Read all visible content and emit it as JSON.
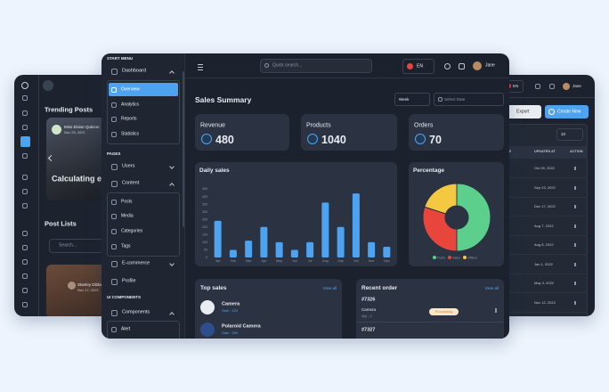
{
  "left_panel": {
    "trending_title": "Trending Posts",
    "author": "Miss Eloise Quitzon",
    "author_date": "Nov 25, 2021",
    "post_title": "Calculating exa",
    "post_lists_title": "Post Lists",
    "search_placeholder": "Search...",
    "list_author": "Stanley Dibbert",
    "list_date": "Nov 17, 2021"
  },
  "sidebar": {
    "start_menu": "START MENU",
    "dashboard": "Dashboard",
    "dashboard_items": [
      "Overview",
      "Analytics",
      "Reports",
      "Statistics"
    ],
    "pages_label": "PAGES",
    "users": "Users",
    "content": "Content",
    "content_items": [
      "Posts",
      "Media",
      "Categories",
      "Tags"
    ],
    "ecommerce": "E-commerce",
    "profile": "Profile",
    "ui_label": "UI COMPONENTS",
    "components": "Components",
    "components_items": [
      "Alert"
    ]
  },
  "header": {
    "search_placeholder": "Quick search...",
    "language": "EN",
    "user": "Jane"
  },
  "summary": {
    "title": "Sales Summary",
    "period": "Week",
    "date_placeholder": "Select Date",
    "stats": [
      {
        "label": "Revenue",
        "value": 480
      },
      {
        "label": "Products",
        "value": 1040
      },
      {
        "label": "Orders",
        "value": 70
      }
    ]
  },
  "daily_sales": {
    "type": "bar",
    "title": "Daily sales",
    "categories": [
      "Jan",
      "Feb",
      "Mar",
      "Apr",
      "May",
      "Jun",
      "Jul",
      "Aug",
      "Sep",
      "Oct",
      "Nov",
      "Dec"
    ],
    "values": [
      240,
      50,
      110,
      200,
      100,
      50,
      100,
      360,
      200,
      420,
      100,
      70
    ],
    "color": "#4da3f0",
    "ylim": [
      0,
      450
    ],
    "yticks": [
      0,
      50,
      100,
      150,
      200,
      250,
      300,
      350,
      400,
      450
    ]
  },
  "percentage": {
    "type": "pie",
    "title": "Percentage",
    "categories": [
      "Posts",
      "Sales",
      "Offices"
    ],
    "values": [
      50,
      30,
      20
    ],
    "colors": [
      "#5ccf8c",
      "#e8453c",
      "#f5c842"
    ]
  },
  "top_sales": {
    "title": "Top sales",
    "view_all": "View all",
    "items": [
      {
        "name": "Camera",
        "detail": "Sale : 320"
      },
      {
        "name": "Polaroid Camera",
        "detail": "Sale : 320"
      }
    ]
  },
  "recent_order": {
    "title": "Recent order",
    "view_all": "View all",
    "orders": [
      {
        "id": "#7326",
        "product": "Camera",
        "quantity": "Qty : 2",
        "status": "Processing"
      },
      {
        "id": "#7327"
      }
    ]
  },
  "right_panel": {
    "language": "EN",
    "user": "Jane",
    "export": "Export",
    "create": "Create New",
    "page_size": "10",
    "columns": [
      "SALE",
      "UPDATED AT",
      "ACTION"
    ],
    "dates": [
      "Oct 25, 2022",
      "Sep 23, 2022",
      "Dec 17, 2022",
      "Aug 7, 2022",
      "Aug 8, 2022",
      "Jan 1, 2022",
      "May 3, 2022",
      "Nov 12, 2022"
    ]
  }
}
